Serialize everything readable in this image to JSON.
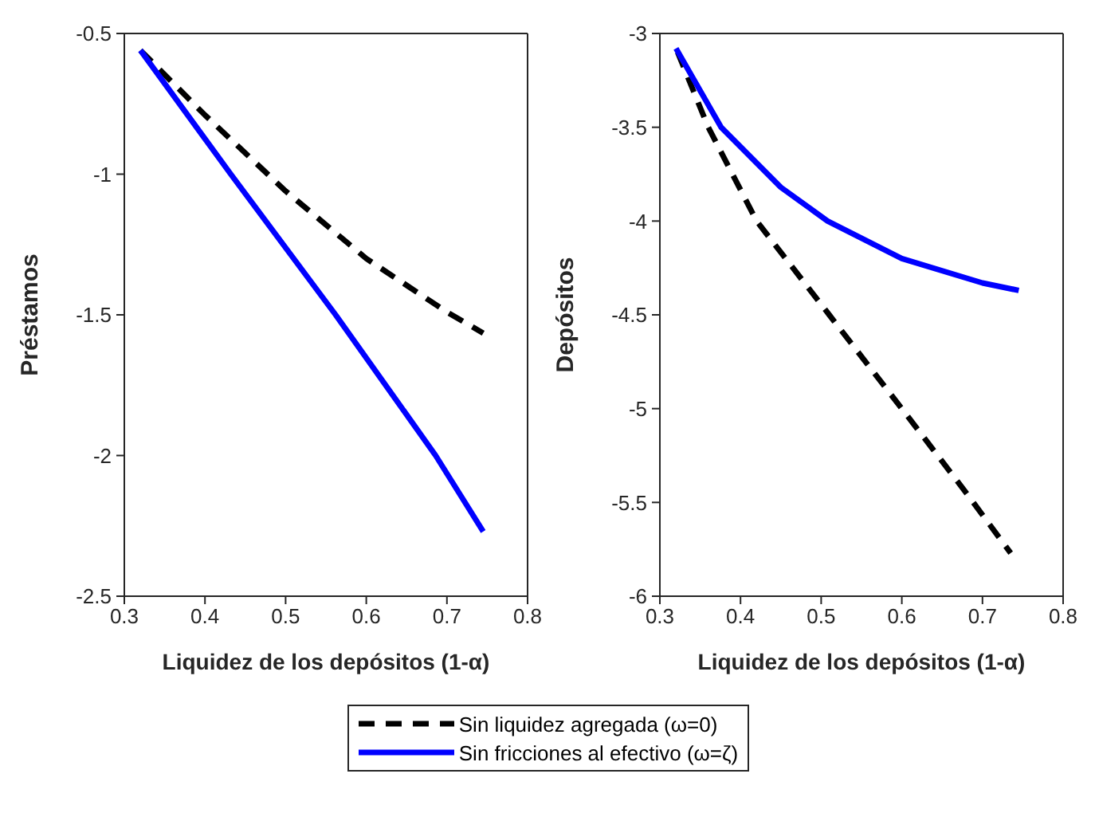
{
  "chart_data": [
    {
      "type": "line",
      "xlabel": "Liquidez de los depósitos (1-α)",
      "ylabel": "Préstamos",
      "xlim": [
        0.3,
        0.8
      ],
      "xticks": [
        0.3,
        0.4,
        0.5,
        0.6,
        0.7,
        0.8
      ],
      "ylim": [
        -2.5,
        -0.5
      ],
      "yticks": [
        -2.5,
        -2,
        -1.5,
        -1,
        -0.5
      ],
      "grid": false,
      "legend": "bottom",
      "marker": "none",
      "series": [
        {
          "name": "Sin liquidez agregada (ω=0)",
          "color": "#000000",
          "line_style": "dashed",
          "x": [
            0.32,
            0.4,
            0.5,
            0.6,
            0.7,
            0.745
          ],
          "values": [
            -0.56,
            -0.79,
            -1.06,
            -1.3,
            -1.49,
            -1.565
          ]
        },
        {
          "name": "Sin fricciones al efectivo (ω=ζ)",
          "color": "#0000ff",
          "line_style": "solid",
          "x": [
            0.32,
            0.432,
            0.562,
            0.686,
            0.745
          ],
          "values": [
            -0.56,
            -1,
            -1.5,
            -2,
            -2.27
          ]
        }
      ]
    },
    {
      "type": "line",
      "xlabel": "Liquidez de los depósitos (1-α)",
      "ylabel": "Depósitos",
      "xlim": [
        0.3,
        0.8
      ],
      "xticks": [
        0.3,
        0.4,
        0.5,
        0.6,
        0.7,
        0.8
      ],
      "ylim": [
        -6,
        -3
      ],
      "yticks": [
        -6,
        -5.5,
        -5,
        -4.5,
        -4,
        -3.5,
        -3
      ],
      "grid": false,
      "marker": "none",
      "series": [
        {
          "color": "#000000",
          "line_style": "dashed",
          "x": [
            0.322,
            0.36,
            0.42,
            0.51,
            0.6,
            0.68,
            0.735
          ],
          "values": [
            -3.1,
            -3.5,
            -4,
            -4.5,
            -5,
            -5.45,
            -5.77
          ]
        },
        {
          "color": "#0000ff",
          "line_style": "solid",
          "x": [
            0.32,
            0.376,
            0.45,
            0.508,
            0.6,
            0.7,
            0.745
          ],
          "values": [
            -3.08,
            -3.5,
            -3.82,
            -4,
            -4.2,
            -4.33,
            -4.37
          ]
        }
      ]
    }
  ]
}
